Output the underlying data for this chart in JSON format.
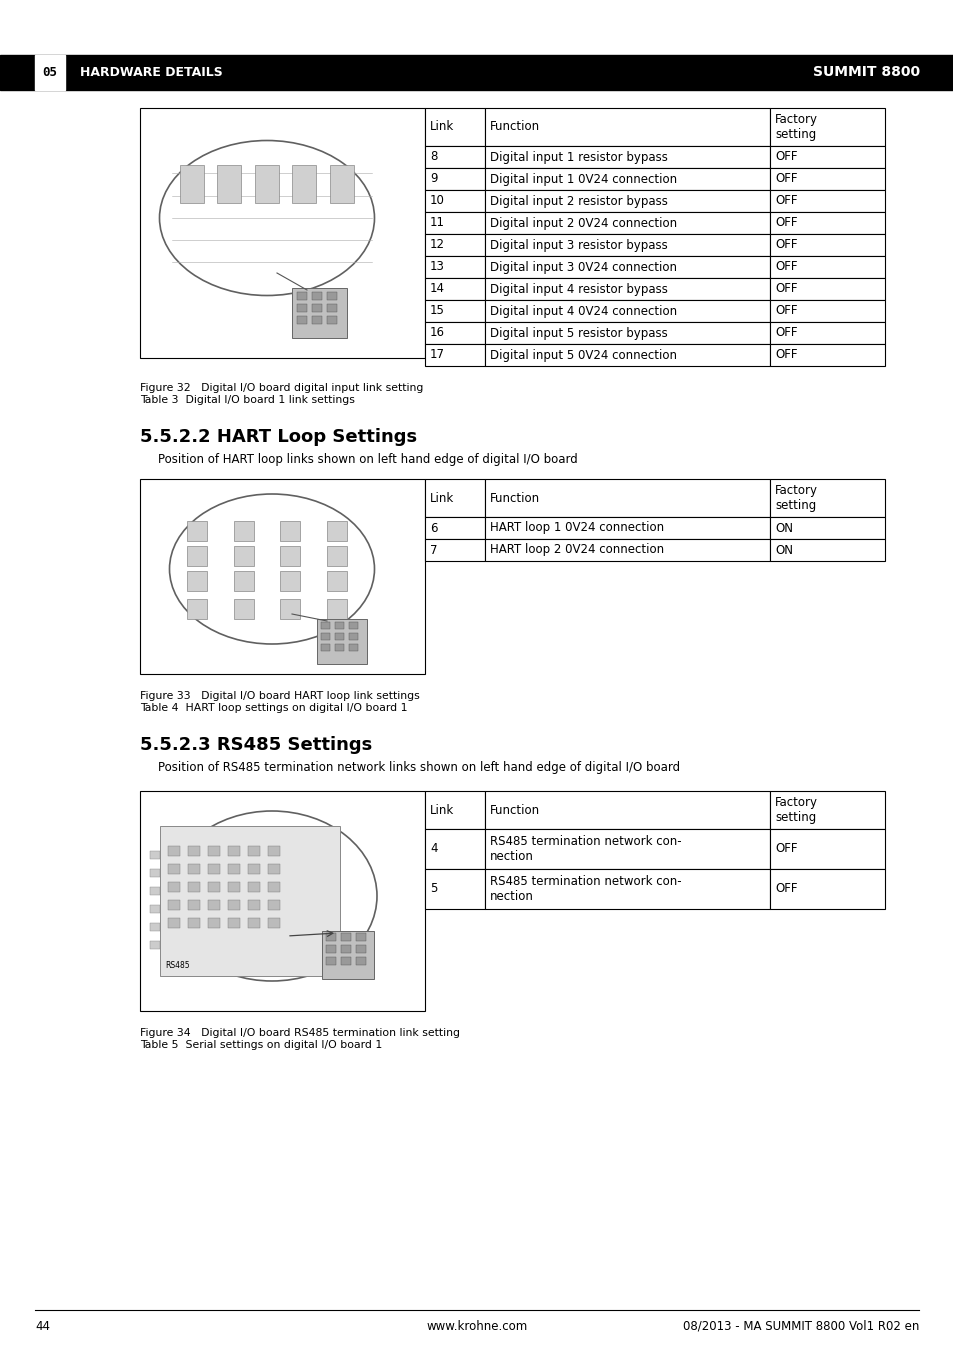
{
  "page_bg": "#ffffff",
  "header_bg": "#000000",
  "header_text_color": "#ffffff",
  "header_left": "05   HARDWARE DETAILS",
  "header_right": "SUMMIT 8800",
  "footer_page": "44",
  "footer_center": "www.krohne.com",
  "footer_right": "08/2013 - MA SUMMIT 8800 Vol1 R02 en",
  "section1_title": "5.5.2.2 HART Loop Settings",
  "section1_subtitle": "Position of HART loop links shown on left hand edge of digital I/O board",
  "section2_title": "5.5.2.3 RS485 Settings",
  "section2_subtitle": "Position of RS485 termination network links shown on left hand edge of digital I/O board",
  "fig32_caption": "Figure 32   Digital I/O board digital input link setting\nTable 3  Digital I/O board 1 link settings",
  "fig33_caption": "Figure 33   Digital I/O board HART loop link settings\nTable 4  HART loop settings on digital I/O board 1",
  "fig34_caption": "Figure 34   Digital I/O board RS485 termination link setting\nTable 5  Serial settings on digital I/O board 1",
  "table1_headers": [
    "Link",
    "Function",
    "Factory\nsetting"
  ],
  "table1_rows": [
    [
      "8",
      "Digital input 1 resistor bypass",
      "OFF"
    ],
    [
      "9",
      "Digital input 1 0V24 connection",
      "OFF"
    ],
    [
      "10",
      "Digital input 2 resistor bypass",
      "OFF"
    ],
    [
      "11",
      "Digital input 2 0V24 connection",
      "OFF"
    ],
    [
      "12",
      "Digital input 3 resistor bypass",
      "OFF"
    ],
    [
      "13",
      "Digital input 3 0V24 connection",
      "OFF"
    ],
    [
      "14",
      "Digital input 4 resistor bypass",
      "OFF"
    ],
    [
      "15",
      "Digital input 4 0V24 connection",
      "OFF"
    ],
    [
      "16",
      "Digital input 5 resistor bypass",
      "OFF"
    ],
    [
      "17",
      "Digital input 5 0V24 connection",
      "OFF"
    ]
  ],
  "table2_headers": [
    "Link",
    "Function",
    "Factory\nsetting"
  ],
  "table2_rows": [
    [
      "6",
      "HART loop 1 0V24 connection",
      "ON"
    ],
    [
      "7",
      "HART loop 2 0V24 connection",
      "ON"
    ]
  ],
  "table3_headers": [
    "Link",
    "Function",
    "Factory\nsetting"
  ],
  "table3_rows": [
    [
      "4",
      "RS485 termination network con-\nnection",
      "OFF"
    ],
    [
      "5",
      "RS485 termination network con-\nnection",
      "OFF"
    ]
  ],
  "table_border": "#000000",
  "row_bg": "#ffffff",
  "text_color": "#000000",
  "body_font_size": 8.5,
  "caption_font_size": 8.0
}
